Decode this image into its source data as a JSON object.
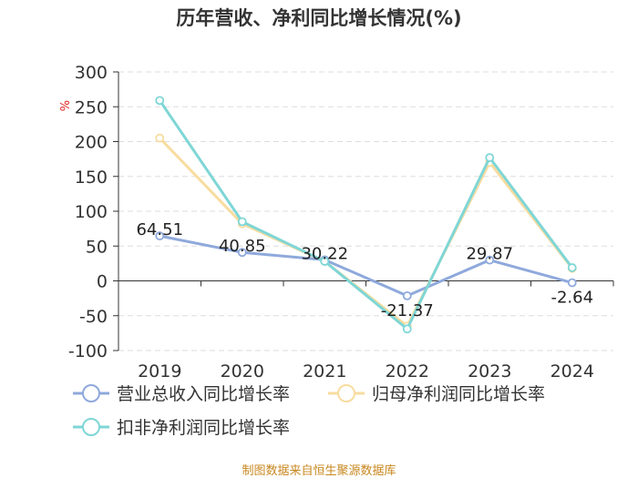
{
  "chart_data": {
    "type": "line",
    "title": "历年营收、净利同比增长情况(%)",
    "ylabel": "%",
    "categories": [
      "2019",
      "2020",
      "2021",
      "2022",
      "2023",
      "2024"
    ],
    "ylim": [
      -100,
      300
    ],
    "yticks": [
      300,
      250,
      200,
      150,
      100,
      50,
      0,
      -50,
      -100
    ],
    "grid": true,
    "legend_position": "bottom",
    "series": [
      {
        "name": "营业总收入同比增长率",
        "color": "#8fa9dc",
        "values": [
          64.51,
          40.85,
          30.22,
          -21.37,
          29.87,
          -2.64
        ],
        "labels": [
          "64.51",
          "40.85",
          "30.22",
          "-21.37",
          "29.87",
          "-2.64"
        ]
      },
      {
        "name": "归母净利润同比增长率",
        "color": "#f8dca0",
        "values": [
          205,
          82,
          28,
          -65,
          170,
          18
        ]
      },
      {
        "name": "扣非净利润同比增长率",
        "color": "#7fd6d6",
        "values": [
          259,
          85,
          28,
          -69,
          177,
          19
        ]
      }
    ],
    "source": "制图数据来自恒生聚源数据库"
  }
}
